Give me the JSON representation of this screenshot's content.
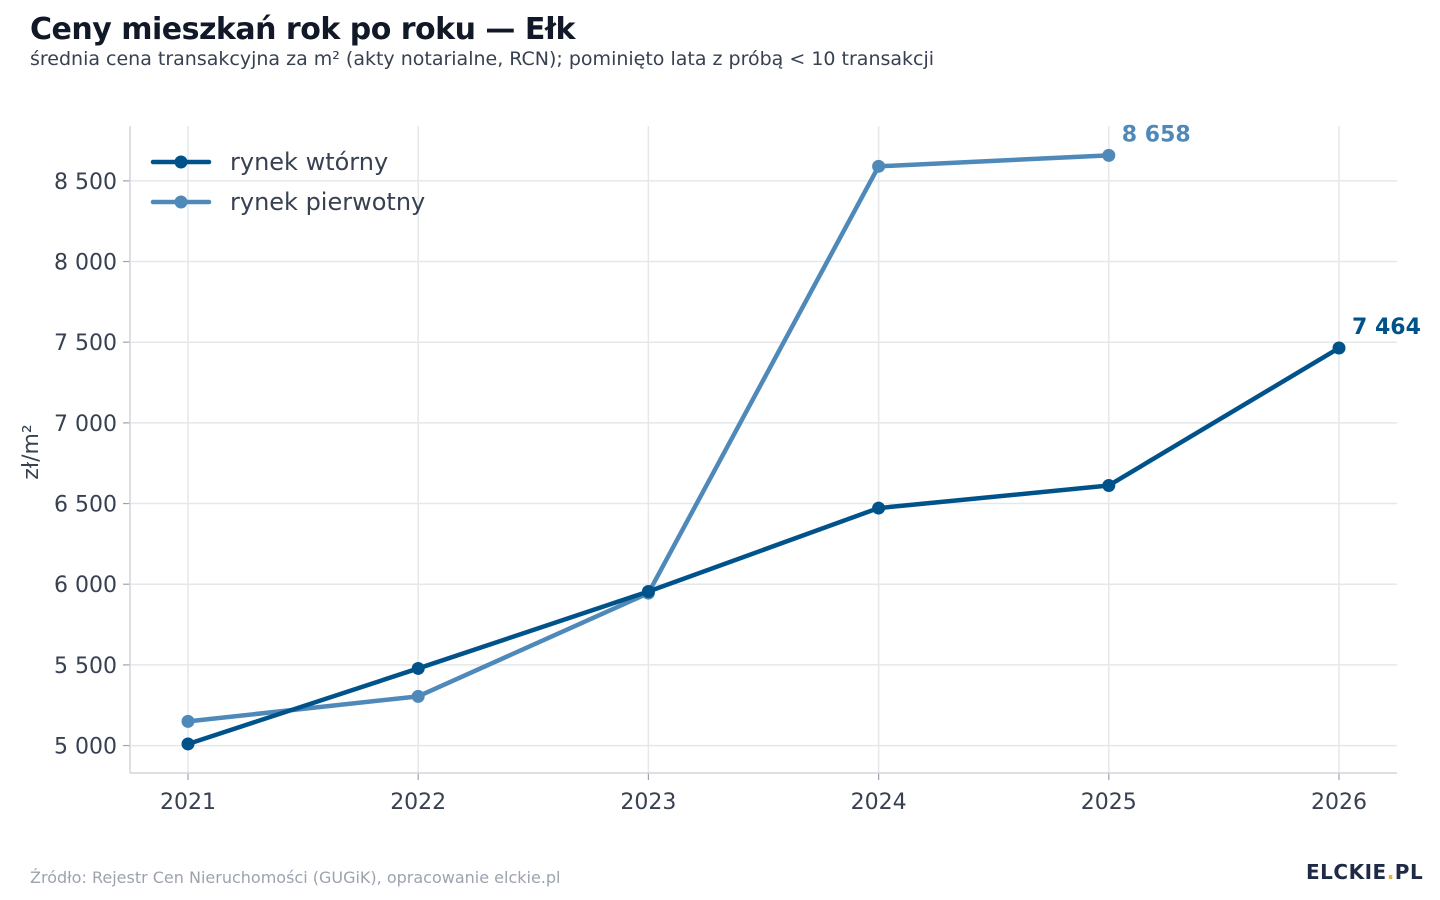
{
  "title": "Ceny mieszkań rok po roku — Ełk",
  "subtitle": "średnia cena transakcyjna za m² (akty notarialne, RCN); pominięto lata z próbą < 10 transakcji",
  "source": "Źródło: Rejestr Cen Nieruchomości (GUGiK), opracowanie elckie.pl",
  "logo": {
    "main": "ELCKIE",
    "dot": ".",
    "tld": "PL"
  },
  "colors": {
    "secondary_market": "#00538a",
    "primary_market": "#4e89ba",
    "grid": "#e5e7eb"
  },
  "chart_data": {
    "type": "line",
    "title": "Ceny mieszkań rok po roku — Ełk",
    "subtitle": "średnia cena transakcyjna za m² (akty notarialne, RCN); pominięto lata z próbą < 10 transakcji",
    "x": [
      2021,
      2022,
      2023,
      2024,
      2025,
      2026
    ],
    "x_tick_labels": [
      "2021",
      "2022",
      "2023",
      "2024",
      "2025",
      "2026"
    ],
    "ylabel": "zł/m²",
    "ylim": [
      4830,
      8840
    ],
    "y_ticks": [
      5000,
      5500,
      6000,
      6500,
      7000,
      7500,
      8000,
      8500
    ],
    "y_tick_labels": [
      "5 000",
      "5 500",
      "6 000",
      "6 500",
      "7 000",
      "7 500",
      "8 000",
      "8 500"
    ],
    "grid": true,
    "legend_position": "top-left",
    "series": [
      {
        "name": "rynek wtórny",
        "color": "#00538a",
        "values": [
          5010,
          5478,
          5955,
          6472,
          6612,
          7464
        ],
        "end_label": "7 464"
      },
      {
        "name": "rynek pierwotny",
        "color": "#4e89ba",
        "values": [
          5150,
          5305,
          5945,
          8590,
          8658,
          null
        ],
        "end_label": "8 658"
      }
    ]
  }
}
